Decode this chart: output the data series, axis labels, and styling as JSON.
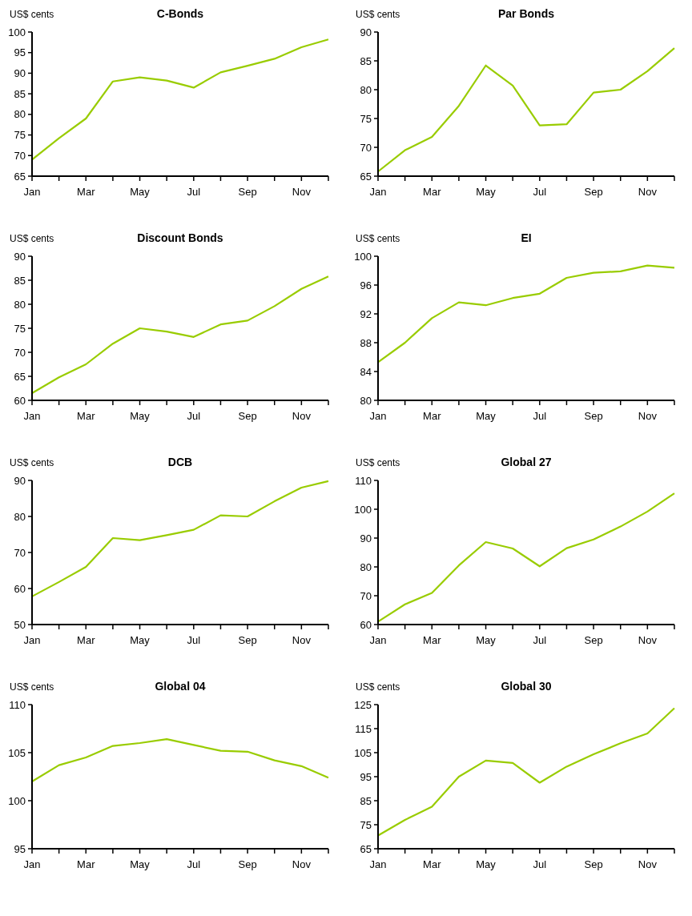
{
  "chart_data": [
    {
      "type": "line",
      "title": "C-Bonds",
      "ylabel": "US$ cents",
      "categories": [
        "Jan",
        null,
        "Mar",
        null,
        "May",
        null,
        "Jul",
        null,
        "Sep",
        null,
        "Nov",
        null
      ],
      "series": [
        {
          "color": "#99cc00",
          "values": [
            69,
            74.2,
            79,
            88,
            89,
            88.2,
            86.5,
            90.2,
            91.8,
            93.5,
            96.3,
            98.2
          ]
        }
      ],
      "ylim": [
        65,
        100
      ],
      "yticks": [
        65,
        70,
        75,
        80,
        85,
        90,
        95,
        100
      ],
      "grid": false
    },
    {
      "type": "line",
      "title": "Par Bonds",
      "ylabel": "US$ cents",
      "categories": [
        "Jan",
        null,
        "Mar",
        null,
        "May",
        null,
        "Jul",
        null,
        "Sep",
        null,
        "Nov",
        null
      ],
      "series": [
        {
          "color": "#99cc00",
          "values": [
            65.8,
            69.5,
            71.8,
            77.2,
            84.2,
            80.7,
            73.8,
            74,
            79.5,
            80,
            83.2,
            87.2
          ]
        }
      ],
      "ylim": [
        65,
        90
      ],
      "yticks": [
        65,
        70,
        75,
        80,
        85,
        90
      ],
      "grid": false
    },
    {
      "type": "line",
      "title": "Discount Bonds",
      "ylabel": "US$ cents",
      "categories": [
        "Jan",
        null,
        "Mar",
        null,
        "May",
        null,
        "Jul",
        null,
        "Sep",
        null,
        "Nov",
        null
      ],
      "series": [
        {
          "color": "#99cc00",
          "values": [
            61.5,
            64.8,
            67.5,
            71.8,
            75,
            74.3,
            73.2,
            75.8,
            76.6,
            79.6,
            83.2,
            85.8
          ]
        }
      ],
      "ylim": [
        60,
        90
      ],
      "yticks": [
        60,
        65,
        70,
        75,
        80,
        85,
        90
      ],
      "grid": false
    },
    {
      "type": "line",
      "title": "EI",
      "ylabel": "US$ cents",
      "categories": [
        "Jan",
        null,
        "Mar",
        null,
        "May",
        null,
        "Jul",
        null,
        "Sep",
        null,
        "Nov",
        null
      ],
      "series": [
        {
          "color": "#99cc00",
          "values": [
            85.3,
            88,
            91.4,
            93.6,
            93.2,
            94.2,
            94.8,
            97,
            97.7,
            97.9,
            98.7,
            98.4
          ]
        }
      ],
      "ylim": [
        80,
        100
      ],
      "yticks": [
        80,
        84,
        88,
        92,
        96,
        100
      ],
      "grid": false
    },
    {
      "type": "line",
      "title": "DCB",
      "ylabel": "US$ cents",
      "categories": [
        "Jan",
        null,
        "Mar",
        null,
        "May",
        null,
        "Jul",
        null,
        "Sep",
        null,
        "Nov",
        null
      ],
      "series": [
        {
          "color": "#99cc00",
          "values": [
            57.8,
            61.8,
            66,
            74,
            73.4,
            74.8,
            76.3,
            80.3,
            80,
            84.2,
            88,
            89.8
          ]
        }
      ],
      "ylim": [
        50,
        90
      ],
      "yticks": [
        50,
        60,
        70,
        80,
        90
      ],
      "grid": false
    },
    {
      "type": "line",
      "title": "Global 27",
      "ylabel": "US$ cents",
      "categories": [
        "Jan",
        null,
        "Mar",
        null,
        "May",
        null,
        "Jul",
        null,
        "Sep",
        null,
        "Nov",
        null
      ],
      "series": [
        {
          "color": "#99cc00",
          "values": [
            61,
            67,
            71,
            80.5,
            88.6,
            86.4,
            80.2,
            86.5,
            89.5,
            94,
            99.2,
            105.5
          ]
        }
      ],
      "ylim": [
        60,
        110
      ],
      "yticks": [
        60,
        70,
        80,
        90,
        100,
        110
      ],
      "grid": false
    },
    {
      "type": "line",
      "title": "Global 04",
      "ylabel": "US$ cents",
      "categories": [
        "Jan",
        null,
        "Mar",
        null,
        "May",
        null,
        "Jul",
        null,
        "Sep",
        null,
        "Nov",
        null
      ],
      "series": [
        {
          "color": "#99cc00",
          "values": [
            102,
            103.7,
            104.5,
            105.7,
            106,
            106.4,
            105.8,
            105.2,
            105.1,
            104.2,
            103.6,
            102.4
          ]
        }
      ],
      "ylim": [
        95,
        110
      ],
      "yticks": [
        95,
        100,
        105,
        110
      ],
      "grid": false
    },
    {
      "type": "line",
      "title": "Global 30",
      "ylabel": "US$ cents",
      "categories": [
        "Jan",
        null,
        "Mar",
        null,
        "May",
        null,
        "Jul",
        null,
        "Sep",
        null,
        "Nov",
        null
      ],
      "series": [
        {
          "color": "#99cc00",
          "values": [
            70.5,
            77,
            82.5,
            95,
            101.7,
            100.7,
            92.5,
            99.2,
            104.3,
            108.9,
            113,
            123.5
          ]
        }
      ],
      "ylim": [
        65,
        125
      ],
      "yticks": [
        65,
        75,
        85,
        95,
        105,
        115,
        125
      ],
      "grid": false
    }
  ]
}
